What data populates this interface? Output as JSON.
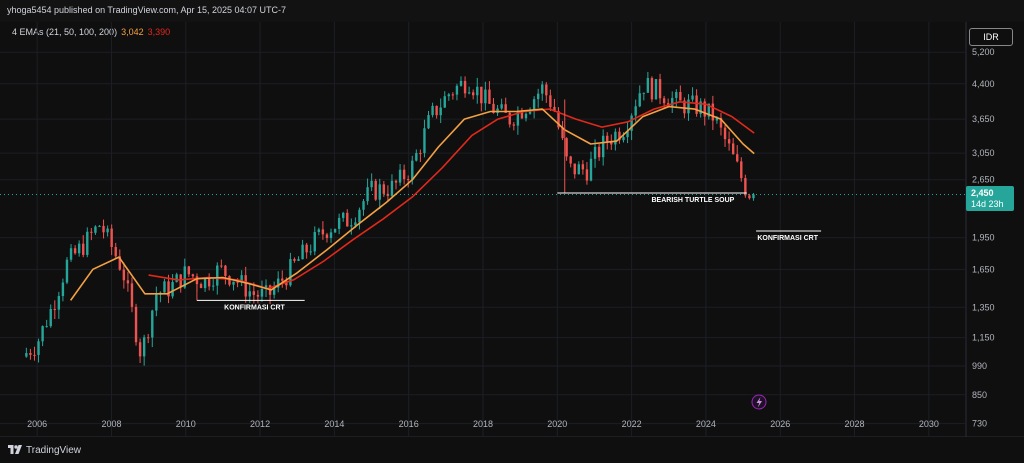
{
  "header": {
    "published_text": "yhoga5454 published on TradingView.com, Apr 15, 2025 04:07 UTC-7"
  },
  "legend": {
    "label": "4 EMAs (21, 50, 100, 200)",
    "ema_a_value": "3,042",
    "ema_b_value": "3,390"
  },
  "currency_button": "IDR",
  "footer": {
    "brand": "TradingView"
  },
  "colors": {
    "background": "#0f0f0f",
    "up_candle": "#26a69a",
    "down_candle": "#ef5350",
    "ema_orange": "#f5a142",
    "ema_red": "#e0291b",
    "price_line": "#26a69a",
    "annotation": "#ffffff"
  },
  "chart_data": {
    "type": "candlestick",
    "y_scale": "log",
    "ylim": [
      680,
      6100
    ],
    "xlim": [
      2005.0,
      2031.0
    ],
    "y_ticks": [
      "5,200",
      "4,400",
      "3,650",
      "3,050",
      "2,650",
      "1,950",
      "1,650",
      "1,350",
      "1,150",
      "990",
      "850",
      "730"
    ],
    "x_ticks": [
      "2006",
      "2008",
      "2010",
      "2012",
      "2014",
      "2016",
      "2018",
      "2020",
      "2022",
      "2024",
      "2026",
      "2028",
      "2030"
    ],
    "last_price": {
      "value": "2,450",
      "countdown": "14d 23h"
    },
    "price_anchors": [
      [
        2005.6,
        1040
      ],
      [
        2006.0,
        1120
      ],
      [
        2006.4,
        1350
      ],
      [
        2006.8,
        1700
      ],
      [
        2007.3,
        1900
      ],
      [
        2007.7,
        2100
      ],
      [
        2008.3,
        1650
      ],
      [
        2008.8,
        1050
      ],
      [
        2009.2,
        1450
      ],
      [
        2009.6,
        1500
      ],
      [
        2010.0,
        1620
      ],
      [
        2010.5,
        1550
      ],
      [
        2010.9,
        1650
      ],
      [
        2011.3,
        1580
      ],
      [
        2011.8,
        1450
      ],
      [
        2012.2,
        1430
      ],
      [
        2012.7,
        1600
      ],
      [
        2013.3,
        1850
      ],
      [
        2013.8,
        2050
      ],
      [
        2014.4,
        2150
      ],
      [
        2015.0,
        2500
      ],
      [
        2015.6,
        2550
      ],
      [
        2016.1,
        2850
      ],
      [
        2016.6,
        3700
      ],
      [
        2017.1,
        4200
      ],
      [
        2017.6,
        4500
      ],
      [
        2018.2,
        3900
      ],
      [
        2018.7,
        3650
      ],
      [
        2019.2,
        3950
      ],
      [
        2019.6,
        4300
      ],
      [
        2019.9,
        3900
      ],
      [
        2020.3,
        2800
      ],
      [
        2020.8,
        2800
      ],
      [
        2021.3,
        3250
      ],
      [
        2021.8,
        3500
      ],
      [
        2022.3,
        4400
      ],
      [
        2022.8,
        4200
      ],
      [
        2023.3,
        3950
      ],
      [
        2023.8,
        3900
      ],
      [
        2024.2,
        3700
      ],
      [
        2024.6,
        3150
      ],
      [
        2024.9,
        2750
      ],
      [
        2025.1,
        2500
      ],
      [
        2025.28,
        2450
      ]
    ],
    "ema_orange": [
      [
        2006.9,
        1400
      ],
      [
        2007.5,
        1650
      ],
      [
        2008.2,
        1760
      ],
      [
        2008.9,
        1450
      ],
      [
        2009.5,
        1450
      ],
      [
        2010.3,
        1570
      ],
      [
        2011.0,
        1580
      ],
      [
        2011.7,
        1530
      ],
      [
        2012.3,
        1480
      ],
      [
        2013.0,
        1620
      ],
      [
        2013.8,
        1830
      ],
      [
        2014.6,
        2080
      ],
      [
        2015.4,
        2350
      ],
      [
        2016.1,
        2650
      ],
      [
        2016.8,
        3150
      ],
      [
        2017.5,
        3650
      ],
      [
        2018.2,
        3800
      ],
      [
        2018.9,
        3800
      ],
      [
        2019.6,
        3850
      ],
      [
        2020.2,
        3450
      ],
      [
        2020.9,
        3200
      ],
      [
        2021.6,
        3250
      ],
      [
        2022.3,
        3700
      ],
      [
        2023.0,
        3900
      ],
      [
        2023.7,
        3850
      ],
      [
        2024.4,
        3650
      ],
      [
        2025.0,
        3200
      ],
      [
        2025.3,
        3042
      ]
    ],
    "ema_red": [
      [
        2009.0,
        1600
      ],
      [
        2009.8,
        1560
      ],
      [
        2010.6,
        1580
      ],
      [
        2011.4,
        1560
      ],
      [
        2012.2,
        1490
      ],
      [
        2012.9,
        1560
      ],
      [
        2013.7,
        1720
      ],
      [
        2014.5,
        1930
      ],
      [
        2015.3,
        2150
      ],
      [
        2016.1,
        2420
      ],
      [
        2016.9,
        2820
      ],
      [
        2017.7,
        3350
      ],
      [
        2018.4,
        3650
      ],
      [
        2019.1,
        3800
      ],
      [
        2019.8,
        3850
      ],
      [
        2020.5,
        3650
      ],
      [
        2021.2,
        3500
      ],
      [
        2021.9,
        3600
      ],
      [
        2022.6,
        3850
      ],
      [
        2023.3,
        4000
      ],
      [
        2024.0,
        3950
      ],
      [
        2024.7,
        3700
      ],
      [
        2025.3,
        3390
      ]
    ],
    "annotations": [
      {
        "label": "KONFIRMASI CRT",
        "line_level": 1400,
        "line_x": [
          2010.3,
          2013.2
        ],
        "label_x": 2011.85
      },
      {
        "label": "BEARISH TURTLE SOUP",
        "line_level": 2470,
        "line_x": [
          2020.0,
          2025.1
        ],
        "label_x": 2023.65
      },
      {
        "label": "KONFIRMASI CRT",
        "line_level": 2020,
        "line_x": [
          2025.35,
          2027.1
        ],
        "label_x": 2026.2
      }
    ],
    "sweep_markers": [
      {
        "x": 2020.2,
        "from": 2470,
        "to": 4050
      },
      {
        "x": 2010.3,
        "from": 1400,
        "to": 1560
      }
    ]
  }
}
